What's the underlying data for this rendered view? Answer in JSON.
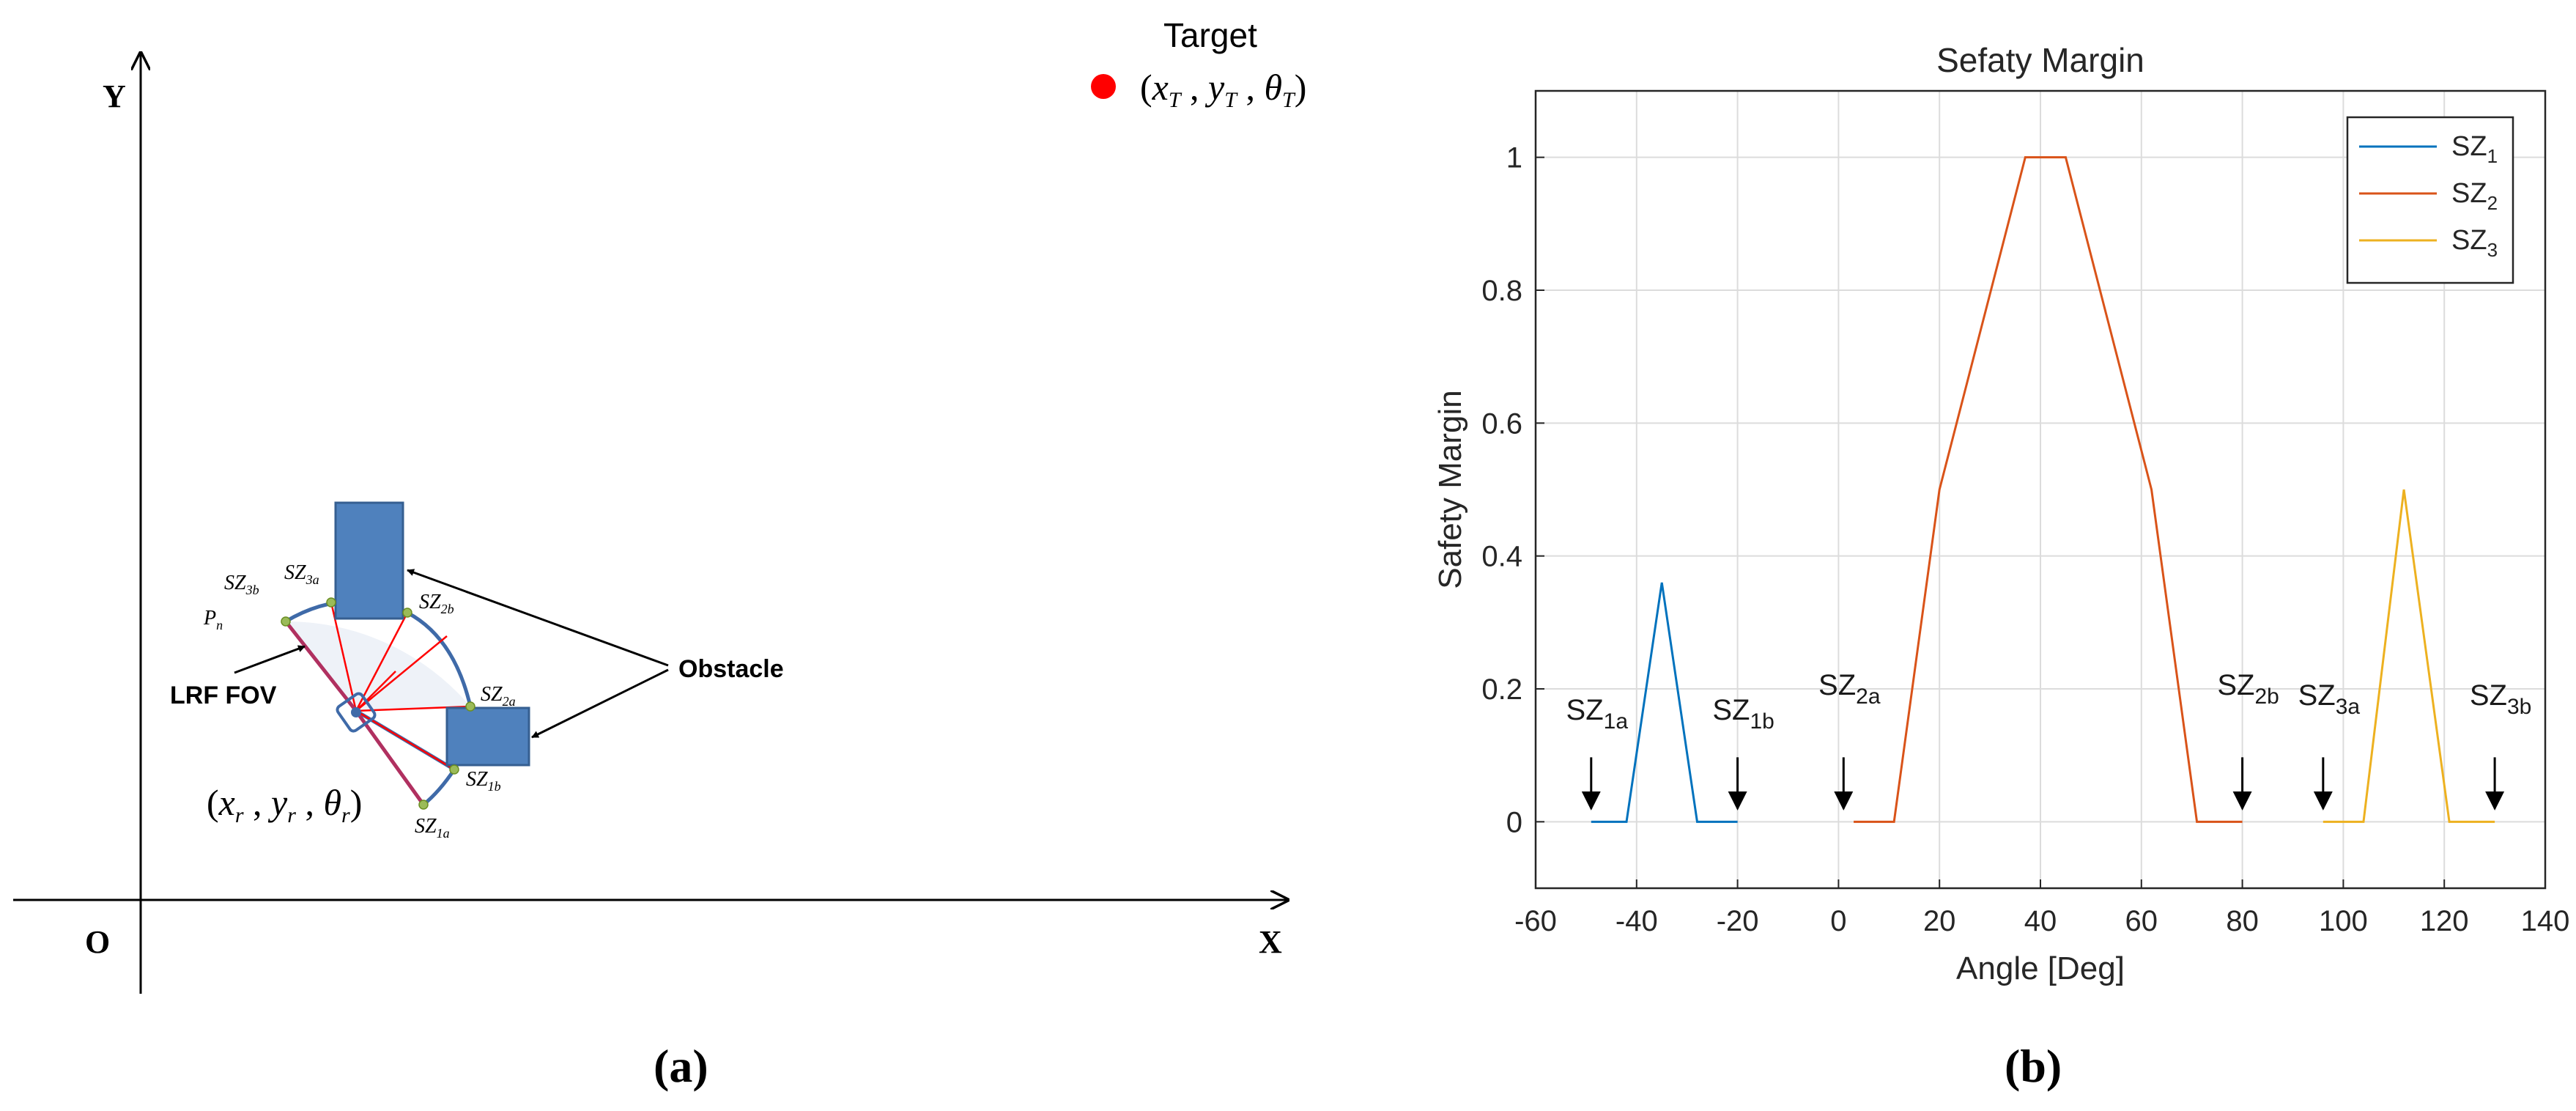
{
  "panel_a": {
    "axis_x": "X",
    "axis_y": "Y",
    "origin": "O",
    "target_label": "Target",
    "target_coord": "(x_T , y_T , θ_T)",
    "robot_coord": "(x_r , y_r , θ_r)",
    "lrf_label": "LRF FOV",
    "obstacle_label": "Obstacle",
    "pn_label": "P",
    "pn_sub": "n",
    "sz_labels": [
      {
        "id": "SZ3b",
        "base": "SZ",
        "sub": "3b"
      },
      {
        "id": "SZ3a",
        "base": "SZ",
        "sub": "3a"
      },
      {
        "id": "SZ2b",
        "base": "SZ",
        "sub": "2b"
      },
      {
        "id": "SZ2a",
        "base": "SZ",
        "sub": "2a"
      },
      {
        "id": "SZ1b",
        "base": "SZ",
        "sub": "1b"
      },
      {
        "id": "SZ1a",
        "base": "SZ",
        "sub": "1a"
      }
    ],
    "caption": "(a)",
    "colors": {
      "obstacle": "#4a7ebb",
      "target": "#ff0000",
      "rays": "#ff0000",
      "fov_edge": "#b03060"
    }
  },
  "panel_b": {
    "caption": "(b)",
    "chart_data": {
      "type": "line",
      "title": "Sefaty Margin",
      "xlabel": "Angle [Deg]",
      "ylabel": "Safety Margin",
      "xlim": [
        -60,
        140
      ],
      "ylim": [
        -0.1,
        1.1
      ],
      "xticks": [
        -60,
        -40,
        -20,
        0,
        20,
        40,
        60,
        80,
        100,
        120,
        140
      ],
      "yticks": [
        0,
        0.2,
        0.4,
        0.6,
        0.8,
        1
      ],
      "grid": true,
      "legend_position": "top-right",
      "series": [
        {
          "name": "SZ",
          "name_sub": "1",
          "color": "#0072bd",
          "x": [
            -49,
            -42,
            -35,
            -28,
            -20
          ],
          "y": [
            0,
            0,
            0.36,
            0,
            0
          ]
        },
        {
          "name": "SZ",
          "name_sub": "2",
          "color": "#d95319",
          "x": [
            3,
            11,
            20,
            37,
            45,
            62,
            71,
            80
          ],
          "y": [
            0,
            0,
            0.5,
            1,
            1,
            0.5,
            0,
            0
          ]
        },
        {
          "name": "SZ",
          "name_sub": "3",
          "color": "#edb120",
          "x": [
            96,
            104,
            112,
            121,
            130
          ],
          "y": [
            0,
            0,
            0.5,
            0,
            0
          ]
        }
      ],
      "annotations": [
        {
          "base": "SZ",
          "sub": "1a",
          "x": -49
        },
        {
          "base": "SZ",
          "sub": "1b",
          "x": -20
        },
        {
          "base": "SZ",
          "sub": "2a",
          "x": 1
        },
        {
          "base": "SZ",
          "sub": "2b",
          "x": 80
        },
        {
          "base": "SZ",
          "sub": "3a",
          "x": 96
        },
        {
          "base": "SZ",
          "sub": "3b",
          "x": 130
        }
      ]
    }
  }
}
